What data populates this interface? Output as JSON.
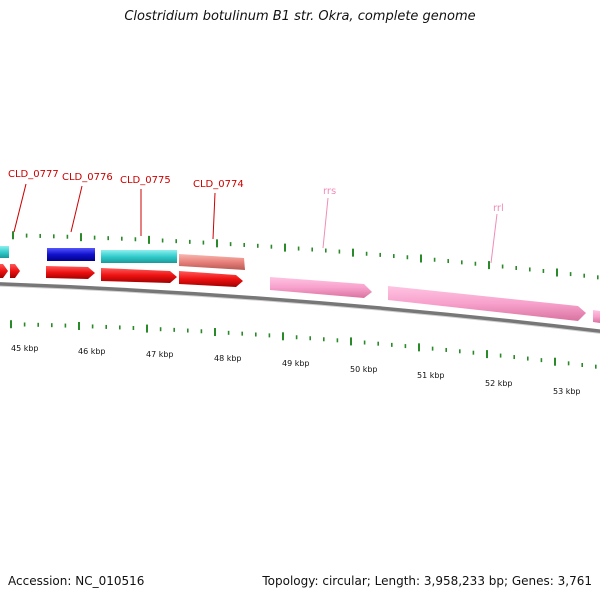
{
  "title": "Clostridium botulinum B1 str. Okra, complete genome",
  "footer": {
    "accession": "Accession: NC_010516",
    "topology": "Topology: circular; Length: 3,958,233 bp; Genes: 3,761"
  },
  "gene_labels": [
    "CLD_0777",
    "CLD_0776",
    "CLD_0775",
    "CLD_0774"
  ],
  "rna_labels": [
    "rrs",
    "rrl"
  ],
  "kbp_labels": [
    "45 kbp",
    "46 kbp",
    "47 kbp",
    "48 kbp",
    "49 kbp",
    "50 kbp",
    "51 kbp",
    "52 kbp",
    "53 kbp"
  ],
  "colors": {
    "cds": "#ee1111",
    "rrna": "#f7a1cc",
    "cyan_feature": "#33cccc",
    "blue_feature": "#1111cc",
    "salmon_feature": "#e8807a",
    "backbone": "#777777",
    "tick": "#2a8a2a",
    "gene_label": "#cc0000",
    "rna_label": "#f08cb8"
  }
}
